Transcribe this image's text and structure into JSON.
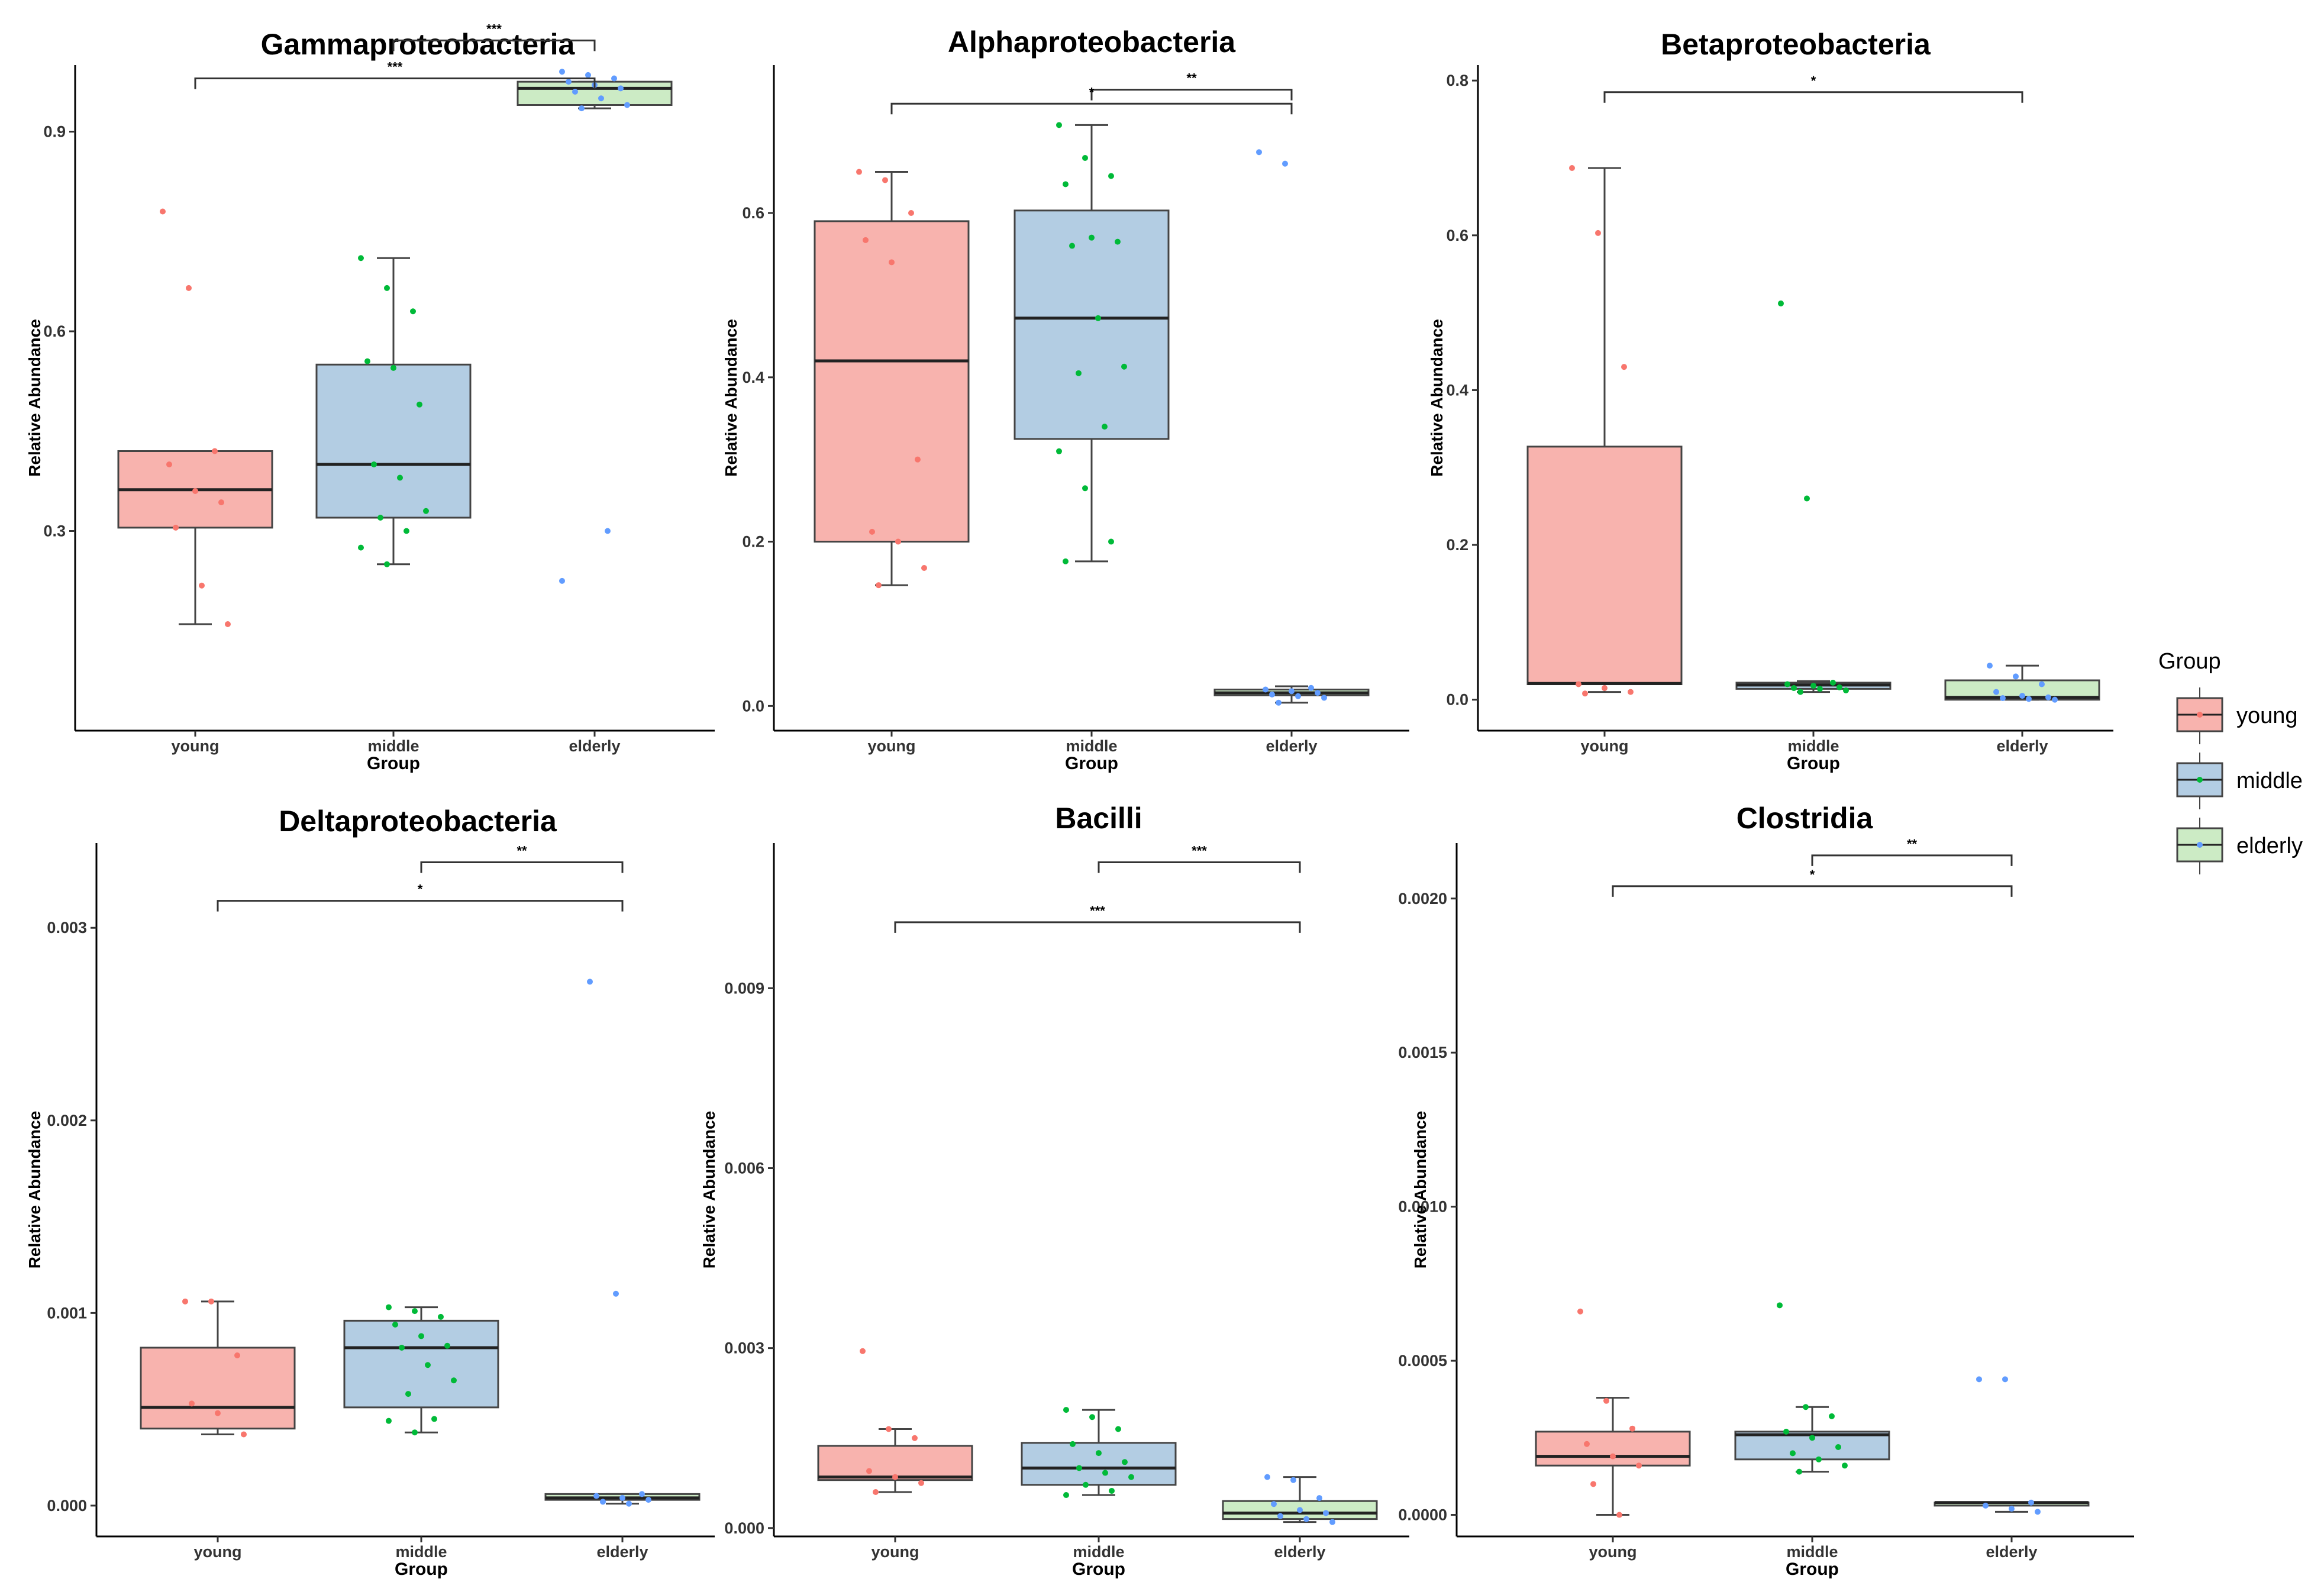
{
  "groups": [
    "young",
    "middle",
    "elderly"
  ],
  "colors": {
    "young_fill": "#F8B3AE",
    "young_point": "#F8766D",
    "middle_fill": "#B3CDE3",
    "middle_point": "#00BA38",
    "elderly_fill": "#CCEBC5",
    "elderly_point": "#619CFF",
    "line": "#444444"
  },
  "legend": {
    "title": "Group",
    "items": [
      "young",
      "middle",
      "elderly"
    ]
  },
  "chart_data": [
    {
      "type": "box",
      "title": "Gammaproteobacteria",
      "xlabel": "Group",
      "ylabel": "Relative Abundance",
      "categories": [
        "young",
        "middle",
        "elderly"
      ],
      "ylim": [
        0.0,
        1.0
      ],
      "yticks": [
        0.3,
        0.6,
        0.9
      ],
      "ytick_labels": [
        "0.3",
        "0.6",
        "0.9"
      ],
      "boxes": [
        {
          "name": "young",
          "q1": 0.305,
          "median": 0.362,
          "q3": 0.42,
          "whisker_low": 0.16,
          "whisker_high": 0.42,
          "points": [
            0.78,
            0.665,
            0.42,
            0.4,
            0.36,
            0.343,
            0.305,
            0.218,
            0.16
          ]
        },
        {
          "name": "middle",
          "q1": 0.32,
          "median": 0.4,
          "q3": 0.55,
          "whisker_low": 0.25,
          "whisker_high": 0.71,
          "points": [
            0.71,
            0.665,
            0.63,
            0.555,
            0.545,
            0.49,
            0.4,
            0.38,
            0.33,
            0.32,
            0.3,
            0.275,
            0.25
          ]
        },
        {
          "name": "elderly",
          "q1": 0.94,
          "median": 0.965,
          "q3": 0.975,
          "whisker_low": 0.935,
          "whisker_high": 0.975,
          "points": [
            0.99,
            0.985,
            0.98,
            0.975,
            0.97,
            0.965,
            0.96,
            0.95,
            0.94,
            0.935,
            0.3,
            0.225
          ]
        }
      ],
      "comparisons": [
        {
          "from": "middle",
          "to": "elderly",
          "label": "***",
          "y": 1.037
        },
        {
          "from": "young",
          "to": "elderly",
          "label": "***",
          "y": 0.98
        }
      ]
    },
    {
      "type": "box",
      "title": "Alphaproteobacteria",
      "xlabel": "Group",
      "ylabel": "Relative Abundance",
      "categories": [
        "young",
        "middle",
        "elderly"
      ],
      "ylim": [
        -0.03,
        0.78
      ],
      "yticks": [
        0.0,
        0.2,
        0.4,
        0.6
      ],
      "ytick_labels": [
        "0.0",
        "0.2",
        "0.4",
        "0.6"
      ],
      "boxes": [
        {
          "name": "young",
          "q1": 0.2,
          "median": 0.42,
          "q3": 0.59,
          "whisker_low": 0.147,
          "whisker_high": 0.65,
          "points": [
            0.65,
            0.64,
            0.6,
            0.567,
            0.54,
            0.3,
            0.212,
            0.2,
            0.168,
            0.147
          ]
        },
        {
          "name": "middle",
          "q1": 0.325,
          "median": 0.472,
          "q3": 0.603,
          "whisker_low": 0.176,
          "whisker_high": 0.707,
          "points": [
            0.707,
            0.667,
            0.645,
            0.635,
            0.57,
            0.565,
            0.56,
            0.472,
            0.413,
            0.405,
            0.34,
            0.31,
            0.265,
            0.2,
            0.176
          ]
        },
        {
          "name": "elderly",
          "q1": 0.013,
          "median": 0.016,
          "q3": 0.02,
          "whisker_low": 0.004,
          "whisker_high": 0.024,
          "points": [
            0.674,
            0.66,
            0.022,
            0.02,
            0.018,
            0.016,
            0.014,
            0.012,
            0.01,
            0.004
          ]
        }
      ],
      "comparisons": [
        {
          "from": "middle",
          "to": "elderly",
          "label": "**",
          "y": 0.75
        },
        {
          "from": "young",
          "to": "elderly",
          "label": "*",
          "y": 0.733
        }
      ]
    },
    {
      "type": "box",
      "title": "Betaproteobacteria",
      "xlabel": "Group",
      "ylabel": "Relative Abundance",
      "categories": [
        "young",
        "middle",
        "elderly"
      ],
      "ylim": [
        -0.04,
        0.82
      ],
      "yticks": [
        0.0,
        0.2,
        0.4,
        0.6,
        0.8
      ],
      "ytick_labels": [
        "0.0",
        "0.2",
        "0.4",
        "0.6",
        "0.8"
      ],
      "boxes": [
        {
          "name": "young",
          "q1": 0.02,
          "median": 0.021,
          "q3": 0.327,
          "whisker_low": 0.01,
          "whisker_high": 0.687,
          "points": [
            0.687,
            0.603,
            0.43,
            0.02,
            0.015,
            0.01,
            0.008
          ]
        },
        {
          "name": "middle",
          "q1": 0.014,
          "median": 0.019,
          "q3": 0.022,
          "whisker_low": 0.01,
          "whisker_high": 0.024,
          "points": [
            0.512,
            0.26,
            0.022,
            0.02,
            0.018,
            0.016,
            0.015,
            0.014,
            0.012,
            0.01
          ]
        },
        {
          "name": "elderly",
          "q1": 0.0,
          "median": 0.003,
          "q3": 0.025,
          "whisker_low": 0.0,
          "whisker_high": 0.044,
          "points": [
            0.044,
            0.03,
            0.02,
            0.01,
            0.005,
            0.003,
            0.002,
            0.001,
            0.0
          ]
        }
      ],
      "comparisons": [
        {
          "from": "young",
          "to": "elderly",
          "label": "*",
          "y": 0.785
        }
      ]
    },
    {
      "type": "box",
      "title": "Deltaproteobacteria",
      "xlabel": "Group",
      "ylabel": "Relative Abundance",
      "categories": [
        "young",
        "middle",
        "elderly"
      ],
      "ylim": [
        -0.00016,
        0.00344
      ],
      "yticks": [
        0.0,
        0.001,
        0.002,
        0.003
      ],
      "ytick_labels": [
        "0.000",
        "0.001",
        "0.002",
        "0.003"
      ],
      "boxes": [
        {
          "name": "young",
          "q1": 0.0004,
          "median": 0.00051,
          "q3": 0.00082,
          "whisker_low": 0.00037,
          "whisker_high": 0.00106,
          "points": [
            0.00106,
            0.00106,
            0.00078,
            0.00053,
            0.00048,
            0.00037
          ]
        },
        {
          "name": "middle",
          "q1": 0.00051,
          "median": 0.00082,
          "q3": 0.00096,
          "whisker_low": 0.00038,
          "whisker_high": 0.00103,
          "points": [
            0.00103,
            0.00101,
            0.00098,
            0.00094,
            0.00088,
            0.00083,
            0.00082,
            0.00073,
            0.00065,
            0.00058,
            0.00045,
            0.00044,
            0.00038
          ]
        },
        {
          "name": "elderly",
          "q1": 3e-05,
          "median": 4e-05,
          "q3": 6e-05,
          "whisker_low": 1e-05,
          "whisker_high": 6e-05,
          "points": [
            0.00272,
            0.0011,
            6e-05,
            5e-05,
            4e-05,
            3e-05,
            2e-05,
            1e-05
          ]
        }
      ],
      "comparisons": [
        {
          "from": "middle",
          "to": "elderly",
          "label": "**",
          "y": 0.00334
        },
        {
          "from": "young",
          "to": "elderly",
          "label": "*",
          "y": 0.00314
        }
      ]
    },
    {
      "type": "box",
      "title": "Bacilli",
      "xlabel": "Group",
      "ylabel": "Relative Abundance",
      "categories": [
        "young",
        "middle",
        "elderly"
      ],
      "ylim": [
        -0.00014,
        0.01142
      ],
      "yticks": [
        0.0,
        0.003,
        0.006,
        0.009
      ],
      "ytick_labels": [
        "0.000",
        "0.003",
        "0.006",
        "0.009"
      ],
      "boxes": [
        {
          "name": "young",
          "q1": 0.0008,
          "median": 0.00085,
          "q3": 0.00137,
          "whisker_low": 0.0006,
          "whisker_high": 0.00165,
          "points": [
            0.00295,
            0.00165,
            0.0015,
            0.00095,
            0.00085,
            0.00075,
            0.0006
          ]
        },
        {
          "name": "middle",
          "q1": 0.00072,
          "median": 0.001,
          "q3": 0.00142,
          "whisker_low": 0.00055,
          "whisker_high": 0.00197,
          "points": [
            0.00197,
            0.00185,
            0.00165,
            0.0014,
            0.00125,
            0.0011,
            0.001,
            0.00092,
            0.00085,
            0.00072,
            0.00062,
            0.00055
          ]
        },
        {
          "name": "elderly",
          "q1": 0.00015,
          "median": 0.00025,
          "q3": 0.00045,
          "whisker_low": 0.0001,
          "whisker_high": 0.00085,
          "points": [
            0.00085,
            0.0008,
            0.0005,
            0.0004,
            0.0003,
            0.00025,
            0.0002,
            0.00015,
            0.0001
          ]
        }
      ],
      "comparisons": [
        {
          "from": "middle",
          "to": "elderly",
          "label": "***",
          "y": 0.0111
        },
        {
          "from": "young",
          "to": "elderly",
          "label": "***",
          "y": 0.0101
        }
      ]
    },
    {
      "type": "box",
      "title": "Clostridia",
      "xlabel": "Group",
      "ylabel": "Relative Abundance",
      "categories": [
        "young",
        "middle",
        "elderly"
      ],
      "ylim": [
        -7e-05,
        0.00218
      ],
      "yticks": [
        0.0,
        0.0005,
        0.001,
        0.0015,
        0.002
      ],
      "ytick_labels": [
        "0.0000",
        "0.0005",
        "0.0010",
        "0.0015",
        "0.0020"
      ],
      "boxes": [
        {
          "name": "young",
          "q1": 0.00016,
          "median": 0.00019,
          "q3": 0.00027,
          "whisker_low": 0.0,
          "whisker_high": 0.00038,
          "points": [
            0.00066,
            0.00037,
            0.00028,
            0.00023,
            0.00019,
            0.00016,
            0.0001,
            0.0
          ]
        },
        {
          "name": "middle",
          "q1": 0.00018,
          "median": 0.00026,
          "q3": 0.00027,
          "whisker_low": 0.00014,
          "whisker_high": 0.00035,
          "points": [
            0.00068,
            0.00035,
            0.00032,
            0.00027,
            0.00025,
            0.00022,
            0.0002,
            0.00018,
            0.00016,
            0.00014
          ]
        },
        {
          "name": "elderly",
          "q1": 3e-05,
          "median": 4e-05,
          "q3": 4e-05,
          "whisker_low": 1e-05,
          "whisker_high": 4e-05,
          "points": [
            0.00044,
            0.00044,
            4e-05,
            3e-05,
            2e-05,
            1e-05
          ]
        }
      ],
      "comparisons": [
        {
          "from": "middle",
          "to": "elderly",
          "label": "**",
          "y": 0.00214
        },
        {
          "from": "young",
          "to": "elderly",
          "label": "*",
          "y": 0.00204
        }
      ]
    }
  ]
}
